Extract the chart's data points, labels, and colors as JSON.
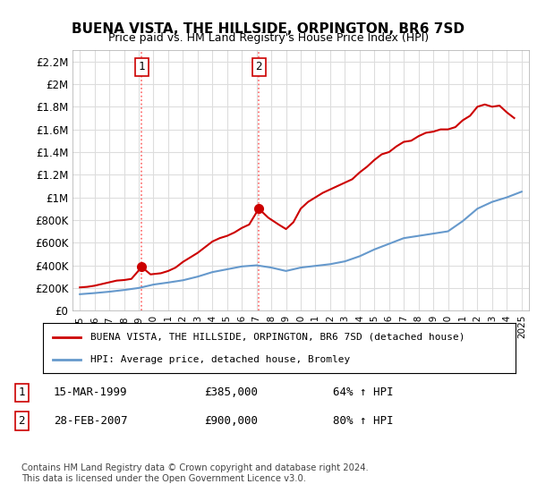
{
  "title": "BUENA VISTA, THE HILLSIDE, ORPINGTON, BR6 7SD",
  "subtitle": "Price paid vs. HM Land Registry's House Price Index (HPI)",
  "ylim": [
    0,
    2300000
  ],
  "yticks": [
    0,
    200000,
    400000,
    600000,
    800000,
    1000000,
    1200000,
    1400000,
    1600000,
    1800000,
    2000000,
    2200000
  ],
  "ytick_labels": [
    "£0",
    "£200K",
    "£400K",
    "£600K",
    "£800K",
    "£1M",
    "£1.2M",
    "£1.4M",
    "£1.6M",
    "£1.8M",
    "£2M",
    "£2.2M"
  ],
  "background_color": "#ffffff",
  "grid_color": "#dddddd",
  "red_line_color": "#cc0000",
  "blue_line_color": "#6699cc",
  "marker1_color": "#cc0000",
  "marker2_color": "#cc0000",
  "vline_color": "#ff6666",
  "vline_style": ":",
  "marker1_year": 1999.2,
  "marker1_value": 385000,
  "marker2_year": 2007.15,
  "marker2_value": 900000,
  "annotation1_label": "1",
  "annotation2_label": "2",
  "legend_red_label": "BUENA VISTA, THE HILLSIDE, ORPINGTON, BR6 7SD (detached house)",
  "legend_blue_label": "HPI: Average price, detached house, Bromley",
  "table_row1": [
    "1",
    "15-MAR-1999",
    "£385,000",
    "64% ↑ HPI"
  ],
  "table_row2": [
    "2",
    "28-FEB-2007",
    "£900,000",
    "80% ↑ HPI"
  ],
  "footer": "Contains HM Land Registry data © Crown copyright and database right 2024.\nThis data is licensed under the Open Government Licence v3.0.",
  "hpi_years": [
    1995,
    1996,
    1997,
    1998,
    1999,
    2000,
    2001,
    2002,
    2003,
    2004,
    2005,
    2006,
    2007,
    2008,
    2009,
    2010,
    2011,
    2012,
    2013,
    2014,
    2015,
    2016,
    2017,
    2018,
    2019,
    2020,
    2021,
    2022,
    2023,
    2024,
    2025
  ],
  "hpi_values": [
    145000,
    155000,
    167000,
    182000,
    200000,
    230000,
    248000,
    268000,
    300000,
    340000,
    365000,
    390000,
    400000,
    380000,
    350000,
    380000,
    395000,
    410000,
    435000,
    480000,
    540000,
    590000,
    640000,
    660000,
    680000,
    700000,
    790000,
    900000,
    960000,
    1000000,
    1050000
  ],
  "red_years": [
    1995.0,
    1995.5,
    1996.0,
    1996.5,
    1997.0,
    1997.5,
    1998.0,
    1998.5,
    1999.2,
    1999.8,
    2000.5,
    2001.0,
    2001.5,
    2002.0,
    2002.5,
    2003.0,
    2003.5,
    2004.0,
    2004.5,
    2005.0,
    2005.5,
    2006.0,
    2006.5,
    2007.15,
    2007.8,
    2008.5,
    2009.0,
    2009.5,
    2010.0,
    2010.5,
    2011.0,
    2011.5,
    2012.0,
    2012.5,
    2013.0,
    2013.5,
    2014.0,
    2014.5,
    2015.0,
    2015.5,
    2016.0,
    2016.5,
    2017.0,
    2017.5,
    2018.0,
    2018.5,
    2019.0,
    2019.5,
    2020.0,
    2020.5,
    2021.0,
    2021.5,
    2022.0,
    2022.5,
    2023.0,
    2023.5,
    2024.0,
    2024.5
  ],
  "red_values": [
    205000,
    210000,
    220000,
    235000,
    250000,
    265000,
    270000,
    280000,
    385000,
    320000,
    330000,
    350000,
    380000,
    430000,
    470000,
    510000,
    560000,
    610000,
    640000,
    660000,
    690000,
    730000,
    760000,
    900000,
    820000,
    760000,
    720000,
    780000,
    900000,
    960000,
    1000000,
    1040000,
    1070000,
    1100000,
    1130000,
    1160000,
    1220000,
    1270000,
    1330000,
    1380000,
    1400000,
    1450000,
    1490000,
    1500000,
    1540000,
    1570000,
    1580000,
    1600000,
    1600000,
    1620000,
    1680000,
    1720000,
    1800000,
    1820000,
    1800000,
    1810000,
    1750000,
    1700000
  ]
}
